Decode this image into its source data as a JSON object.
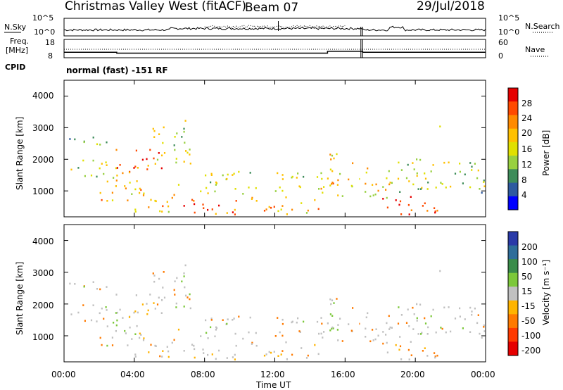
{
  "header": {
    "title": "Christmas Valley West (fitACF)",
    "beam": "Beam 07",
    "date": "29/Jul/2018"
  },
  "top_panel": {
    "left_label": "N.Sky",
    "left_ticks": [
      "10^5",
      "10^0"
    ],
    "right_ticks": [
      "10^5",
      "10^0"
    ],
    "right_label": "N.Search"
  },
  "freq_panel": {
    "left_label_line1": "Freq.",
    "left_label_line2": "[MHz]",
    "left_ticks": [
      "18",
      "8"
    ],
    "right_ticks": [
      "60",
      "0"
    ],
    "right_label": "Nave"
  },
  "cpid": {
    "label": "CPID",
    "text": "normal (fast) -151 RF"
  },
  "range_ticks": [
    "4000",
    "3000",
    "2000",
    "1000"
  ],
  "time_ticks": [
    "00:00",
    "04:00",
    "08:00",
    "12:00",
    "16:00",
    "20:00",
    "00:00"
  ],
  "xlabel": "Time UT",
  "ylabel": "Slant Range [km]",
  "power_colorbar": {
    "label": "Power [dB]",
    "ticks": [
      "28",
      "24",
      "20",
      "16",
      "12",
      "8",
      "4"
    ],
    "colors": [
      "#e60000",
      "#ff4a00",
      "#ff8a00",
      "#ffc000",
      "#e0e000",
      "#98d040",
      "#3e8c5a",
      "#2e5aa0",
      "#0000ff"
    ]
  },
  "velocity_colorbar": {
    "label": "Velocity [m s⁻¹]",
    "ticks": [
      "200",
      "100",
      "50",
      "15",
      "-15",
      "-50",
      "-100",
      "-200"
    ],
    "colors": [
      "#2a3aa8",
      "#2e6e9a",
      "#3a8c4a",
      "#7cc83a",
      "#c0c0c0",
      "#ffb400",
      "#ff7a00",
      "#ff3a00",
      "#e60000"
    ]
  },
  "chart_data": [
    {
      "type": "line",
      "title": "N.Sky / N.Search",
      "x_range": [
        "00:00",
        "24:00"
      ],
      "y_scale": "log",
      "ylim": [
        "10^0",
        "10^5"
      ]
    },
    {
      "type": "line",
      "title": "Freq. / Nave",
      "x": [
        0,
        3,
        3,
        15,
        15,
        17,
        17,
        24
      ],
      "values_mhz": [
        11,
        11,
        10.5,
        10.5,
        11.5,
        11.5,
        11,
        11
      ],
      "ylim": [
        8,
        18
      ]
    },
    {
      "type": "heatmap",
      "title": "Power",
      "xlabel": "Time UT",
      "ylabel": "Slant Range [km]",
      "xlim": [
        "00:00",
        "24:00"
      ],
      "ylim": [
        180,
        4500
      ],
      "colorbar": "Power [dB]",
      "clim": [
        0,
        30
      ],
      "blobs": [
        {
          "t0": 0.0,
          "t1": 2.5,
          "r0": 2300,
          "r1": 2700,
          "level": 10
        },
        {
          "t0": 0.2,
          "t1": 3.0,
          "r0": 1400,
          "r1": 2000,
          "level": 12
        },
        {
          "t0": 2.0,
          "t1": 4.5,
          "r0": 600,
          "r1": 1400,
          "level": 18
        },
        {
          "t0": 2.8,
          "t1": 5.6,
          "r0": 1500,
          "r1": 2300,
          "level": 26
        },
        {
          "t0": 4.0,
          "t1": 6.5,
          "r0": 300,
          "r1": 1200,
          "level": 20
        },
        {
          "t0": 5.0,
          "t1": 7.2,
          "r0": 1800,
          "r1": 3200,
          "level": 14
        },
        {
          "t0": 6.5,
          "t1": 10.5,
          "r0": 220,
          "r1": 700,
          "level": 26
        },
        {
          "t0": 7.5,
          "t1": 11.0,
          "r0": 800,
          "r1": 1600,
          "level": 12
        },
        {
          "t0": 10.5,
          "t1": 14.5,
          "r0": 220,
          "r1": 800,
          "level": 20
        },
        {
          "t0": 12.0,
          "t1": 15.0,
          "r0": 900,
          "r1": 1600,
          "level": 14
        },
        {
          "t0": 14.5,
          "t1": 16.5,
          "r0": 800,
          "r1": 2200,
          "level": 18
        },
        {
          "t0": 16.8,
          "t1": 19.0,
          "r0": 700,
          "r1": 1800,
          "level": 16
        },
        {
          "t0": 18.0,
          "t1": 21.5,
          "r0": 220,
          "r1": 800,
          "level": 28
        },
        {
          "t0": 19.0,
          "t1": 24.0,
          "r0": 900,
          "r1": 2000,
          "level": 12
        },
        {
          "t0": 20.8,
          "t1": 21.4,
          "r0": 3000,
          "r1": 3300,
          "level": 8
        }
      ]
    },
    {
      "type": "heatmap",
      "title": "Velocity",
      "xlabel": "Time UT",
      "ylabel": "Slant Range [km]",
      "xlim": [
        "00:00",
        "24:00"
      ],
      "ylim": [
        180,
        4500
      ],
      "colorbar": "Velocity [m s⁻¹]",
      "clim": [
        -200,
        200
      ]
    }
  ]
}
